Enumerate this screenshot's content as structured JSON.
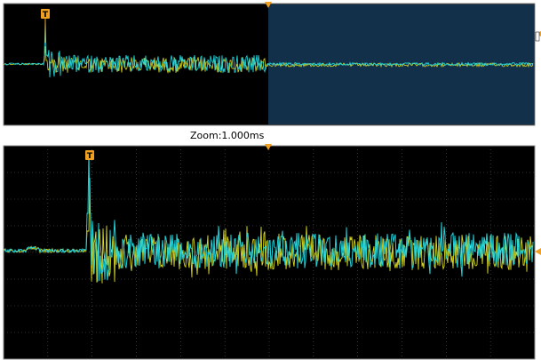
{
  "zoom_label": "Zoom:1.000ms",
  "trigger_marker_text": "T",
  "icons": {
    "trigger_marker": "trigger-flag-icon",
    "timebase_pointer": "orange-down-triangle-icon",
    "level_pointer": "orange-left-triangle-icon"
  },
  "colors": {
    "trace_cyan": "#20d0d8",
    "trace_yellow": "#d8d820",
    "marker_orange": "#f0a020",
    "zoom_highlight": "#123049",
    "grid": "#5a5a5a"
  }
}
